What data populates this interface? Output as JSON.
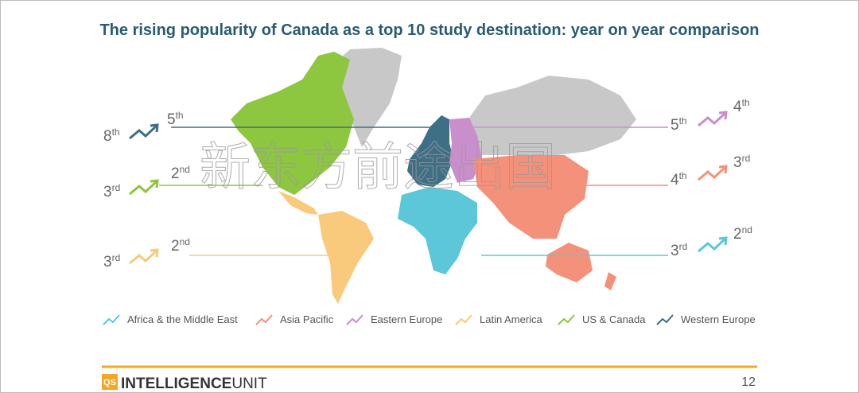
{
  "title": "The rising popularity of Canada as a top 10 study destination: year on year comparison",
  "watermark": "新东方前途出国",
  "regions": [
    {
      "name": "Africa & the Middle East",
      "color": "#5bc7d8",
      "from": {
        "rank": "3",
        "suffix": "rd"
      },
      "to": {
        "rank": "2",
        "suffix": "nd"
      }
    },
    {
      "name": "Asia Pacific",
      "color": "#f4917a",
      "from": {
        "rank": "4",
        "suffix": "th"
      },
      "to": {
        "rank": "3",
        "suffix": "rd"
      }
    },
    {
      "name": "Eastern Europe",
      "color": "#c98fca",
      "from": {
        "rank": "5",
        "suffix": "th"
      },
      "to": {
        "rank": "4",
        "suffix": "th"
      }
    },
    {
      "name": "Latin America",
      "color": "#f9c97c",
      "from": {
        "rank": "3",
        "suffix": "rd"
      },
      "to": {
        "rank": "2",
        "suffix": "nd"
      }
    },
    {
      "name": "US & Canada",
      "color": "#8dc63f",
      "from": {
        "rank": "3",
        "suffix": "rd"
      },
      "to": {
        "rank": "2",
        "suffix": "nd"
      }
    },
    {
      "name": "Western Europe",
      "color": "#3e6f86",
      "from": {
        "rank": "8",
        "suffix": "th"
      },
      "to": {
        "rank": "5",
        "suffix": "th"
      }
    }
  ],
  "footer": {
    "logo": "QS",
    "brand_bold": "INTELLIGENCE",
    "brand_light": "UNIT",
    "page": "12"
  }
}
